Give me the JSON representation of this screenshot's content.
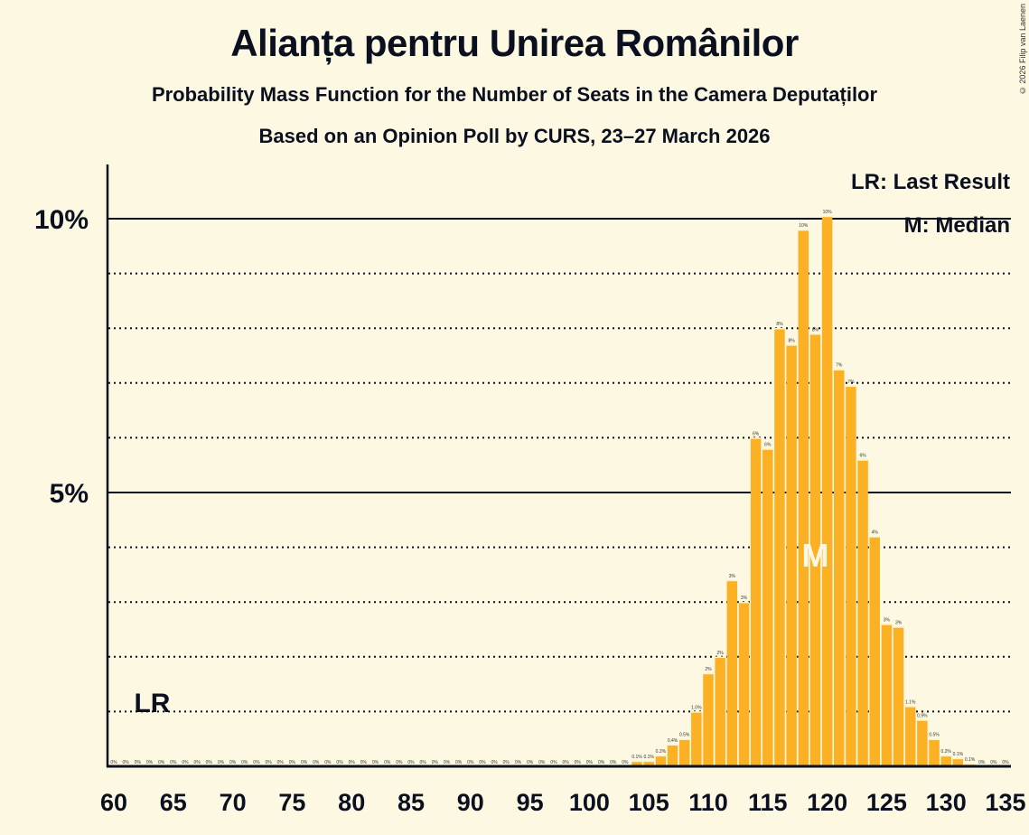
{
  "header": {
    "title": "Alianța pentru Unirea Românilor",
    "subtitle": "Probability Mass Function for the Number of Seats in the Camera Deputaților",
    "source": "Based on an Opinion Poll by CURS, 23–27 March 2026",
    "copyright": "© 2026 Filip van Laenen"
  },
  "legend": {
    "lr": "LR: Last Result",
    "m": "M: Median"
  },
  "markers": {
    "lr_label": "LR",
    "lr_seats": 63,
    "median_label": "M",
    "median_seats": 119
  },
  "colors": {
    "background": "#fdf8e1",
    "bar": "#fbb123",
    "axis": "#0a1020"
  },
  "chart_data": {
    "type": "bar",
    "title": "Alianța pentru Unirea Românilor",
    "subtitle": "Probability Mass Function for the Number of Seats in the Camera Deputaților",
    "xlabel": "",
    "ylabel": "",
    "ylim": [
      0,
      11
    ],
    "yticks": [
      "5%",
      "10%"
    ],
    "xticks": [
      60,
      65,
      70,
      75,
      80,
      85,
      90,
      95,
      100,
      105,
      110,
      115,
      120,
      125,
      130,
      135
    ],
    "grid": "dotted every 1%, solid at 5% and 10%",
    "legend_position": "top-right",
    "categories": [
      60,
      61,
      62,
      63,
      64,
      65,
      66,
      67,
      68,
      69,
      70,
      71,
      72,
      73,
      74,
      75,
      76,
      77,
      78,
      79,
      80,
      81,
      82,
      83,
      84,
      85,
      86,
      87,
      88,
      89,
      90,
      91,
      92,
      93,
      94,
      95,
      96,
      97,
      98,
      99,
      100,
      101,
      102,
      103,
      104,
      105,
      106,
      107,
      108,
      109,
      110,
      111,
      112,
      113,
      114,
      115,
      116,
      117,
      118,
      119,
      120,
      121,
      122,
      123,
      124,
      125,
      126,
      127,
      128,
      129,
      130,
      131,
      132,
      133,
      134,
      135
    ],
    "values": [
      0,
      0,
      0,
      0,
      0,
      0,
      0,
      0,
      0,
      0,
      0,
      0,
      0,
      0,
      0,
      0,
      0,
      0,
      0,
      0,
      0,
      0,
      0,
      0,
      0,
      0,
      0,
      0,
      0,
      0,
      0,
      0,
      0,
      0,
      0,
      0,
      0,
      0,
      0,
      0,
      0,
      0,
      0,
      0,
      0.1,
      0.1,
      0.2,
      0.4,
      0.5,
      1.0,
      1.7,
      2.0,
      3.4,
      3.0,
      6.0,
      5.8,
      8.0,
      7.7,
      9.8,
      7.9,
      10.05,
      7.25,
      6.95,
      5.6,
      4.2,
      2.6,
      2.55,
      1.1,
      0.85,
      0.5,
      0.2,
      0.15,
      0.05,
      0,
      0,
      0
    ],
    "labels": [
      "0%",
      "0%",
      "0%",
      "0%",
      "0%",
      "0%",
      "0%",
      "0%",
      "0%",
      "0%",
      "0%",
      "0%",
      "0%",
      "0%",
      "0%",
      "0%",
      "0%",
      "0%",
      "0%",
      "0%",
      "0%",
      "0%",
      "0%",
      "0%",
      "0%",
      "0%",
      "0%",
      "0%",
      "0%",
      "0%",
      "0%",
      "0%",
      "0%",
      "0%",
      "0%",
      "0%",
      "0%",
      "0%",
      "0%",
      "0%",
      "0%",
      "0%",
      "0%",
      "0%",
      "0.1%",
      "0.1%",
      "0.2%",
      "0.4%",
      "0.5%",
      "1.0%",
      "2%",
      "2%",
      "3%",
      "3%",
      "6%",
      "6%",
      "8%",
      "8%",
      "10%",
      "8%",
      "10%",
      "7%",
      "7%",
      "6%",
      "4%",
      "3%",
      "3%",
      "1.1%",
      "0.9%",
      "0.5%",
      "0.2%",
      "0.1%",
      "0.1%",
      "0%",
      "0%",
      "0%"
    ]
  }
}
